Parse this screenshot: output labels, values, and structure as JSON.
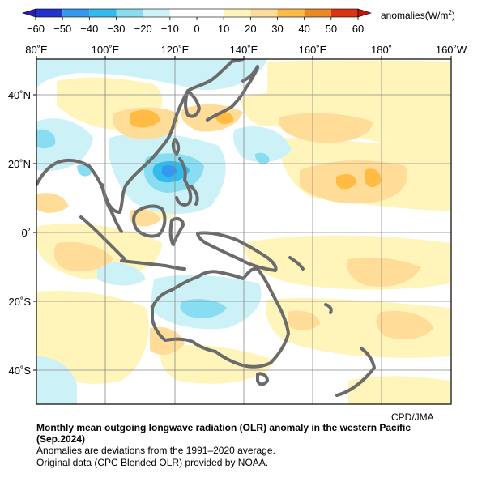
{
  "legend": {
    "title": "anomalies(W/m",
    "title_sup": "2",
    "title_close": ")",
    "ticks": [
      "−60",
      "−50",
      "−40",
      "−30",
      "−20",
      "−10",
      "0",
      "10",
      "20",
      "30",
      "40",
      "50",
      "60"
    ],
    "colors": [
      "#2233cc",
      "#3399ee",
      "#33bbee",
      "#88ddf0",
      "#ccf2f7",
      "#ffffff",
      "#ffffff",
      "#fff5bb",
      "#ffdd99",
      "#ffbb44",
      "#ee8822",
      "#dd3311"
    ]
  },
  "map": {
    "lon_labels": [
      "80˚E",
      "100˚E",
      "120˚E",
      "140˚E",
      "160˚E",
      "180˚",
      "160˚W"
    ],
    "lat_labels": [
      "40˚N",
      "20˚N",
      "0˚",
      "20˚S",
      "40˚S"
    ],
    "region": "western Pacific",
    "coastline_color": "#6b6b6b"
  },
  "credit": "CPD/JMA",
  "caption": {
    "title": "Monthly mean outgoing longwave radiation (OLR) anomaly in the western Pacific",
    "period": "(Sep.2024)",
    "line1": "Anomalies are deviations from the 1991–2020 average.",
    "line2": "Original data (CPC Blended OLR) provided by NOAA."
  }
}
